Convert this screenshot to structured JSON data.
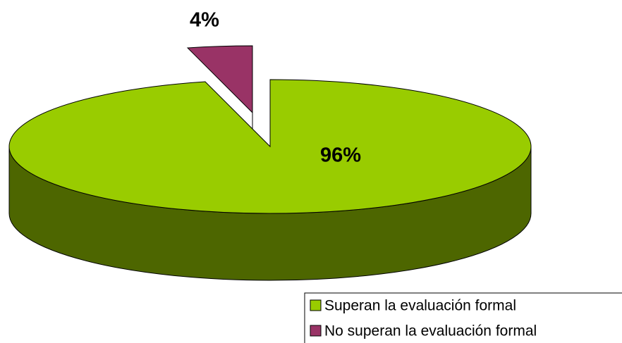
{
  "chart_data": {
    "type": "pie",
    "categories": [
      "Superan la evaluación formal",
      "No superan la evaluación formal"
    ],
    "values": [
      96,
      4
    ],
    "value_labels": [
      "96%",
      "4%"
    ],
    "colors": [
      "#99cc00",
      "#993366"
    ],
    "three_d": true,
    "legend": "bottom-right"
  }
}
